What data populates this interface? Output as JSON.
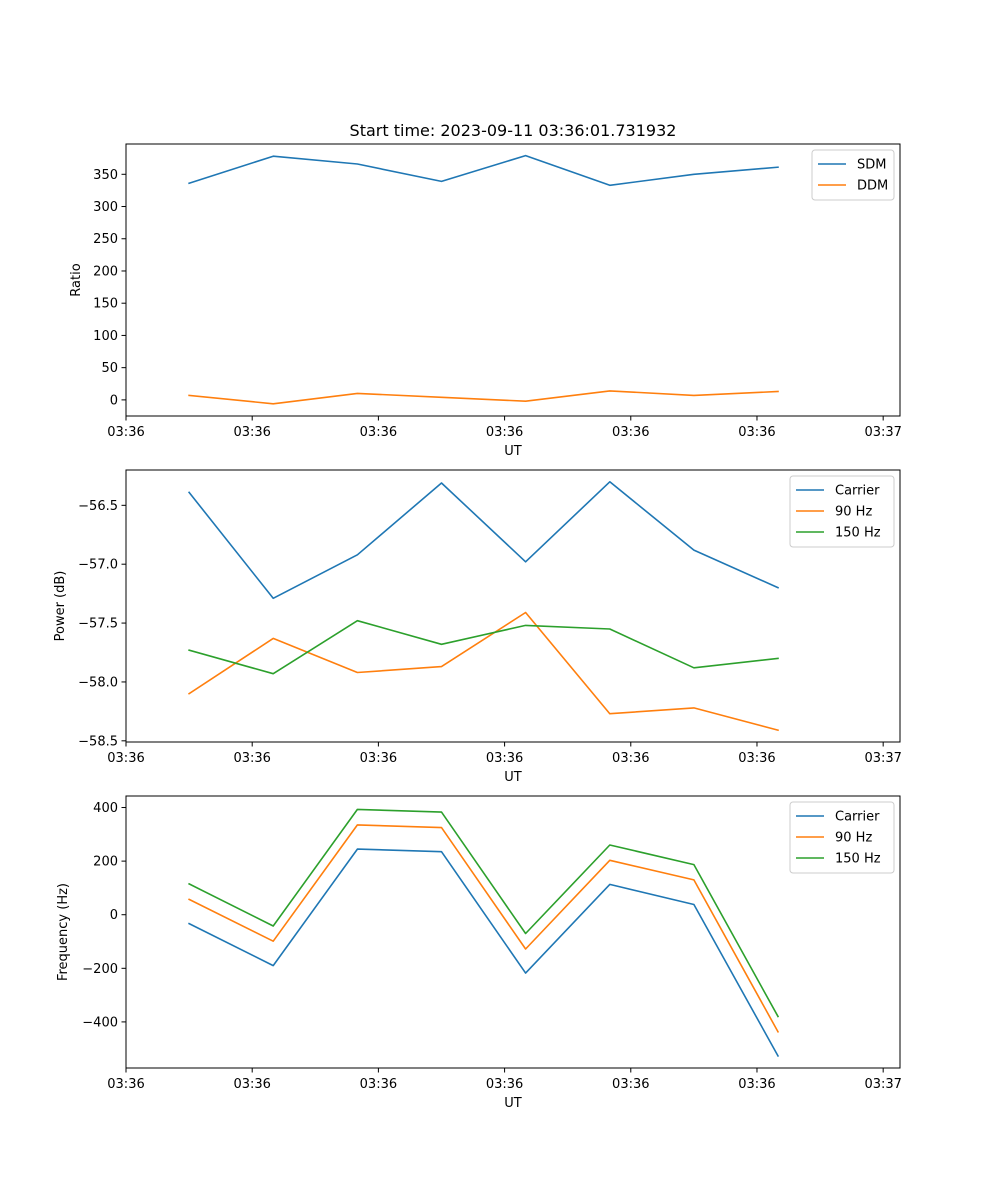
{
  "chart_data": [
    {
      "type": "line",
      "title": "Start time: 2023-09-11 03:36:01.731932",
      "xlabel": "UT",
      "ylabel": "Ratio",
      "xlim": [
        0,
        9.2
      ],
      "ylim": [
        -25,
        397
      ],
      "x": [
        0.75,
        1.75,
        2.75,
        3.75,
        4.75,
        5.75,
        6.75,
        7.75
      ],
      "x_ticks": [
        0,
        1.5,
        3,
        4.5,
        6,
        7.5,
        9
      ],
      "x_tick_labels": [
        "03:36",
        "03:36",
        "03:36",
        "03:36",
        "03:36",
        "03:36",
        "03:37"
      ],
      "y_ticks": [
        0,
        50,
        100,
        150,
        200,
        250,
        300,
        350
      ],
      "y_tick_labels": [
        "0",
        "50",
        "100",
        "150",
        "200",
        "250",
        "300",
        "350"
      ],
      "legend": "top-right",
      "series": [
        {
          "name": "SDM",
          "color": "#1f77b4",
          "values": [
            336,
            378,
            366,
            339,
            379,
            333,
            350,
            361
          ]
        },
        {
          "name": "DDM",
          "color": "#ff7f0e",
          "values": [
            7,
            -6,
            10,
            4,
            -2,
            14,
            7,
            13
          ]
        }
      ]
    },
    {
      "type": "line",
      "title": "",
      "xlabel": "UT",
      "ylabel": "Power (dB)",
      "xlim": [
        0,
        9.2
      ],
      "ylim": [
        -58.51,
        -56.2
      ],
      "x": [
        0.75,
        1.75,
        2.75,
        3.75,
        4.75,
        5.75,
        6.75,
        7.75
      ],
      "x_ticks": [
        0,
        1.5,
        3,
        4.5,
        6,
        7.5,
        9
      ],
      "x_tick_labels": [
        "03:36",
        "03:36",
        "03:36",
        "03:36",
        "03:36",
        "03:36",
        "03:37"
      ],
      "y_ticks": [
        -58.5,
        -58.0,
        -57.5,
        -57.0,
        -56.5
      ],
      "y_tick_labels": [
        "−58.5",
        "−58.0",
        "−57.5",
        "−57.0",
        "−56.5"
      ],
      "legend": "top-right",
      "series": [
        {
          "name": "Carrier",
          "color": "#1f77b4",
          "values": [
            -56.39,
            -57.29,
            -56.92,
            -56.31,
            -56.98,
            -56.3,
            -56.88,
            -57.2
          ]
        },
        {
          "name": "90 Hz",
          "color": "#ff7f0e",
          "values": [
            -58.1,
            -57.63,
            -57.92,
            -57.87,
            -57.41,
            -58.27,
            -58.22,
            -58.41
          ]
        },
        {
          "name": "150 Hz",
          "color": "#2ca02c",
          "values": [
            -57.73,
            -57.93,
            -57.48,
            -57.68,
            -57.52,
            -57.55,
            -57.88,
            -57.8
          ]
        }
      ]
    },
    {
      "type": "line",
      "title": "",
      "xlabel": "UT",
      "ylabel": "Frequency (Hz)",
      "xlim": [
        0,
        9.2
      ],
      "ylim": [
        -572,
        443
      ],
      "x": [
        0.75,
        1.75,
        2.75,
        3.75,
        4.75,
        5.75,
        6.75,
        7.75
      ],
      "x_ticks": [
        0,
        1.5,
        3,
        4.5,
        6,
        7.5,
        9
      ],
      "x_tick_labels": [
        "03:36",
        "03:36",
        "03:36",
        "03:36",
        "03:36",
        "03:36",
        "03:37"
      ],
      "y_ticks": [
        -400,
        -200,
        0,
        200,
        400
      ],
      "y_tick_labels": [
        "−400",
        "−200",
        "0",
        "200",
        "400"
      ],
      "legend": "top-right",
      "series": [
        {
          "name": "Carrier",
          "color": "#1f77b4",
          "values": [
            -33,
            -190,
            245,
            235,
            -218,
            113,
            38,
            -527
          ]
        },
        {
          "name": "90 Hz",
          "color": "#ff7f0e",
          "values": [
            57,
            -99,
            335,
            325,
            -128,
            203,
            130,
            -437
          ]
        },
        {
          "name": "150 Hz",
          "color": "#2ca02c",
          "values": [
            115,
            -42,
            393,
            383,
            -70,
            260,
            187,
            -380
          ]
        }
      ]
    }
  ]
}
